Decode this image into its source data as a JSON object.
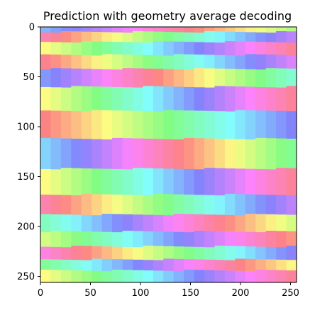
{
  "chart_data": {
    "type": "heatmap",
    "title": "Prediction with geometry average decoding",
    "xlabel": "",
    "ylabel": "",
    "xlim": [
      0,
      256
    ],
    "ylim": [
      256,
      0
    ],
    "x_ticks": [
      0,
      50,
      100,
      150,
      200,
      250
    ],
    "y_ticks": [
      0,
      50,
      100,
      150,
      200,
      250
    ],
    "x_tick_labels": [
      "0",
      "50",
      "100",
      "150",
      "200",
      "250"
    ],
    "y_tick_labels": [
      "0",
      "50",
      "100",
      "150",
      "200",
      "250"
    ],
    "grid": false,
    "legend": "none",
    "colormap": "hsv (pastel, alpha ~0.5)",
    "description_of_data": "Horizontal stripes of constant hue per row band; hue gradually shifts across columns (left to right) within each band.",
    "bands": [
      {
        "y0": 0,
        "y1": 5,
        "hue_start": 215,
        "hue_step": 10
      },
      {
        "y0": 5,
        "y1": 15,
        "hue_start": 340,
        "hue_step": 12
      },
      {
        "y0": 15,
        "y1": 28,
        "hue_start": 60,
        "hue_step": 12
      },
      {
        "y0": 28,
        "y1": 42,
        "hue_start": 355,
        "hue_step": 12
      },
      {
        "y0": 42,
        "y1": 60,
        "hue_start": 230,
        "hue_step": 12
      },
      {
        "y0": 60,
        "y1": 84,
        "hue_start": 60,
        "hue_step": 12
      },
      {
        "y0": 84,
        "y1": 112,
        "hue_start": 0,
        "hue_step": 10
      },
      {
        "y0": 112,
        "y1": 142,
        "hue_start": 200,
        "hue_step": 12
      },
      {
        "y0": 142,
        "y1": 168,
        "hue_start": 60,
        "hue_step": 12
      },
      {
        "y0": 168,
        "y1": 188,
        "hue_start": 340,
        "hue_step": 12
      },
      {
        "y0": 188,
        "y1": 205,
        "hue_start": 150,
        "hue_step": 12
      },
      {
        "y0": 205,
        "y1": 220,
        "hue_start": 80,
        "hue_step": 12
      },
      {
        "y0": 220,
        "y1": 233,
        "hue_start": 315,
        "hue_step": 12
      },
      {
        "y0": 233,
        "y1": 244,
        "hue_start": 130,
        "hue_step": 12
      },
      {
        "y0": 244,
        "y1": 256,
        "hue_start": 60,
        "hue_step": 12
      }
    ]
  }
}
